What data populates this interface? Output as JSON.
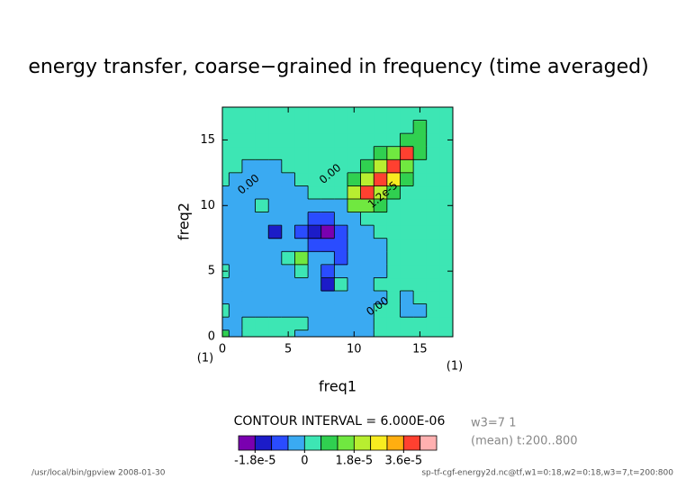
{
  "chart_data": {
    "type": "contour",
    "title": "energy transfer, coarse−grained in frequency (time averaged)",
    "xlabel": "freq1",
    "ylabel": "freq2",
    "xunit": "(1)",
    "yunit": "(1)",
    "xlim": [
      0,
      17.5
    ],
    "ylim": [
      0,
      17.5
    ],
    "xticks": [
      0,
      5,
      10,
      15
    ],
    "yticks": [
      0,
      5,
      10,
      15
    ],
    "x": [
      0,
      1,
      2,
      3,
      4,
      5,
      6,
      7,
      8,
      9,
      10,
      11,
      12,
      13,
      14,
      15,
      16,
      17
    ],
    "y": [
      0,
      1,
      2,
      3,
      4,
      5,
      6,
      7,
      8,
      9,
      10,
      11,
      12,
      13,
      14,
      15,
      16,
      17
    ],
    "z": [
      [
        9e-06,
        -3e-06,
        3e-06,
        3e-06,
        3e-06,
        3e-06,
        -3e-06,
        -3e-06,
        -3e-06,
        -3e-06,
        -3e-06,
        -3e-06,
        3e-06,
        3e-06,
        3e-06,
        3e-06,
        3e-06,
        3e-06
      ],
      [
        -3e-06,
        -3e-06,
        3e-06,
        3e-06,
        3e-06,
        3e-06,
        3e-06,
        -3e-06,
        -3e-06,
        -3e-06,
        -3e-06,
        -3e-06,
        3e-06,
        3e-06,
        3e-06,
        3e-06,
        3e-06,
        3e-06
      ],
      [
        3e-06,
        -3e-06,
        -3e-06,
        -3e-06,
        -3e-06,
        -3e-06,
        -3e-06,
        -3e-06,
        -3e-06,
        -3e-06,
        -3e-06,
        -3e-06,
        3e-06,
        3e-06,
        -3e-06,
        -3e-06,
        3e-06,
        3e-06
      ],
      [
        -3e-06,
        -3e-06,
        -3e-06,
        -3e-06,
        -3e-06,
        -3e-06,
        -3e-06,
        -3e-06,
        -3e-06,
        -3e-06,
        -3e-06,
        -3e-06,
        -3e-06,
        3e-06,
        -3e-06,
        3e-06,
        3e-06,
        3e-06
      ],
      [
        -3e-06,
        -3e-06,
        -3e-06,
        -3e-06,
        -3e-06,
        -3e-06,
        -3e-06,
        -3e-06,
        -1.5e-05,
        3e-06,
        -3e-06,
        -3e-06,
        3e-06,
        3e-06,
        3e-06,
        3e-06,
        3e-06,
        3e-06
      ],
      [
        3e-06,
        -3e-06,
        -3e-06,
        -3e-06,
        -3e-06,
        -3e-06,
        3e-06,
        -3e-06,
        -9e-06,
        -3e-06,
        -3e-06,
        -3e-06,
        -3e-06,
        3e-06,
        3e-06,
        3e-06,
        3e-06,
        3e-06
      ],
      [
        -3e-06,
        -3e-06,
        -3e-06,
        -3e-06,
        -3e-06,
        3e-06,
        1.5e-05,
        -3e-06,
        -3e-06,
        -9e-06,
        -3e-06,
        -3e-06,
        -3e-06,
        3e-06,
        3e-06,
        3e-06,
        3e-06,
        3e-06
      ],
      [
        -3e-06,
        -3e-06,
        -3e-06,
        -3e-06,
        -3e-06,
        -3e-06,
        -3e-06,
        -9e-06,
        -9e-06,
        -9e-06,
        -3e-06,
        -3e-06,
        -3e-06,
        3e-06,
        3e-06,
        3e-06,
        3e-06,
        3e-06
      ],
      [
        -3e-06,
        -3e-06,
        -3e-06,
        -3e-06,
        -1.5e-05,
        -3e-06,
        -9e-06,
        -1.5e-05,
        -2.1e-05,
        -9e-06,
        -3e-06,
        -3e-06,
        3e-06,
        3e-06,
        3e-06,
        3e-06,
        3e-06,
        3e-06
      ],
      [
        -3e-06,
        -3e-06,
        -3e-06,
        -3e-06,
        -3e-06,
        -3e-06,
        -3e-06,
        -9e-06,
        -9e-06,
        -3e-06,
        -3e-06,
        3e-06,
        3e-06,
        3e-06,
        3e-06,
        3e-06,
        3e-06,
        3e-06
      ],
      [
        -3e-06,
        -3e-06,
        -3e-06,
        3e-06,
        -3e-06,
        -3e-06,
        -3e-06,
        -3e-06,
        -3e-06,
        -3e-06,
        1.5e-05,
        1.5e-05,
        9e-06,
        3e-06,
        3e-06,
        3e-06,
        3e-06,
        3e-06
      ],
      [
        -3e-06,
        -3e-06,
        -3e-06,
        -3e-06,
        -3e-06,
        -3e-06,
        -3e-06,
        3e-06,
        3e-06,
        3e-06,
        2.1e-05,
        3.9e-05,
        2.1e-05,
        9e-06,
        3e-06,
        3e-06,
        3e-06,
        3e-06
      ],
      [
        3e-06,
        -3e-06,
        -3e-06,
        -3e-06,
        -3e-06,
        -3e-06,
        3e-06,
        3e-06,
        3e-06,
        3e-06,
        9e-06,
        2.1e-05,
        3.9e-05,
        2.7e-05,
        9e-06,
        3e-06,
        3e-06,
        3e-06
      ],
      [
        3e-06,
        3e-06,
        -3e-06,
        -3e-06,
        -3e-06,
        3e-06,
        3e-06,
        3e-06,
        3e-06,
        3e-06,
        3e-06,
        9e-06,
        2.1e-05,
        3.9e-05,
        1.5e-05,
        3e-06,
        3e-06,
        3e-06
      ],
      [
        3e-06,
        3e-06,
        3e-06,
        3e-06,
        3e-06,
        3e-06,
        3e-06,
        3e-06,
        3e-06,
        3e-06,
        3e-06,
        3e-06,
        9e-06,
        1.5e-05,
        3.9e-05,
        9e-06,
        3e-06,
        3e-06
      ],
      [
        3e-06,
        3e-06,
        3e-06,
        3e-06,
        3e-06,
        3e-06,
        3e-06,
        3e-06,
        3e-06,
        3e-06,
        3e-06,
        3e-06,
        3e-06,
        3e-06,
        9e-06,
        9e-06,
        3e-06,
        3e-06
      ],
      [
        3e-06,
        3e-06,
        3e-06,
        3e-06,
        3e-06,
        3e-06,
        3e-06,
        3e-06,
        3e-06,
        3e-06,
        3e-06,
        3e-06,
        3e-06,
        3e-06,
        3e-06,
        9e-06,
        3e-06,
        3e-06
      ],
      [
        3e-06,
        3e-06,
        3e-06,
        3e-06,
        3e-06,
        3e-06,
        3e-06,
        3e-06,
        3e-06,
        3e-06,
        3e-06,
        3e-06,
        3e-06,
        3e-06,
        3e-06,
        3e-06,
        3e-06,
        3e-06
      ]
    ],
    "annotations": [
      {
        "text": "0.00",
        "x": 2,
        "y": 11.6,
        "angle": -40
      },
      {
        "text": "0.00",
        "x": 8.2,
        "y": 12.4,
        "angle": -40
      },
      {
        "text": "0.00",
        "x": 11.8,
        "y": 2.3,
        "angle": -35
      },
      {
        "text": "1.2e-5",
        "x": 12.2,
        "y": 10.8,
        "angle": -40
      }
    ],
    "contour_interval": "CONTOUR INTERVAL = 6.000E-06",
    "colorbar": {
      "levels": [
        -2.4e-05,
        -1.8e-05,
        -1.2e-05,
        -6e-06,
        0,
        6e-06,
        1.2e-05,
        1.8e-05,
        2.4e-05,
        3e-05,
        3.6e-05,
        4.2e-05,
        4.8e-05
      ],
      "colors": [
        "#7a00b0",
        "#1c1cc8",
        "#2a4cff",
        "#3aaaf2",
        "#3de6b4",
        "#30d050",
        "#70e840",
        "#b8ee30",
        "#f8ec20",
        "#ffae10",
        "#ff4030",
        "#ffb0b0"
      ],
      "ticks": [
        {
          "value": -1.8e-05,
          "label": "-1.8e-5"
        },
        0,
        {
          "value": 1.8e-05,
          "label": "1.8e-5"
        },
        {
          "value": 3.6e-05,
          "label": "3.6e-5"
        }
      ]
    },
    "notes": [
      "w3=7 1",
      "(mean) t:200..800"
    ],
    "footer_left": "/usr/local/bin/gpview  2008-01-30",
    "footer_right": "sp-tf-cgf-energy2d.nc@tf,w1=0:18,w2=0:18,w3=7,t=200:800"
  }
}
